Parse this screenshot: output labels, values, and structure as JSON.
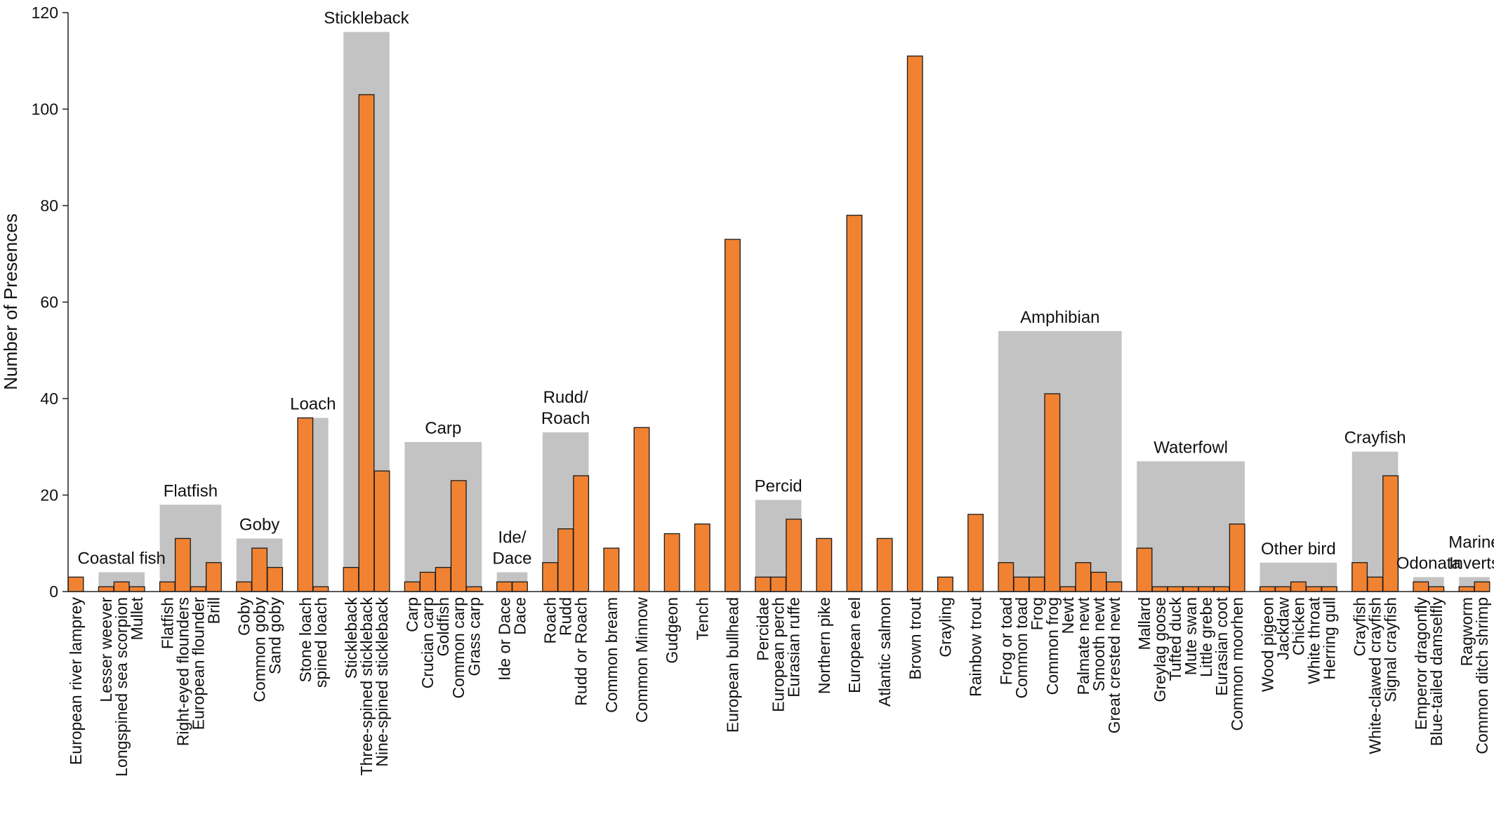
{
  "colors": {
    "bar": "#F08232",
    "bar_stroke": "#1a1a1a",
    "group_box": "#C3C3C3",
    "axis": "#222222"
  },
  "chart_data": {
    "type": "bar",
    "title": "",
    "xlabel": "",
    "ylabel": "Number of Presences",
    "ylim": [
      0,
      120
    ],
    "yticks": [
      0,
      20,
      40,
      60,
      80,
      100,
      120
    ],
    "grid": false,
    "legend": "none",
    "categories": [
      "European river lamprey",
      "Lesser weever",
      "Longspined sea scorpion",
      "Mullet",
      "Flatfish",
      "Right-eyed flounders",
      "European flounder",
      "Brill",
      "Goby",
      "Common goby",
      "Sand goby",
      "Stone loach",
      "spined loach",
      "Stickleback",
      "Three-spined stickleback",
      "Nine-spined stickleback",
      "Carp",
      "Crucian carp",
      "Goldfish",
      "Common carp",
      "Grass carp",
      "Ide or Dace",
      "Dace",
      "Roach",
      "Rudd",
      "Rudd or Roach",
      "Common bream",
      "Common Minnow",
      "Gudgeon",
      "Tench",
      "European bullhead",
      "Percidae",
      "European perch",
      "Eurasian ruffe",
      "Northern pike",
      "European eel",
      "Atlantic salmon",
      "Brown trout",
      "Grayling",
      "Rainbow trout",
      "Frog or toad",
      "Common toad",
      "Frog",
      "Common frog",
      "Newt",
      "Palmate newt",
      "Smooth newt",
      "Great crested newt",
      "Mallard",
      "Greylag goose",
      "Tufted duck",
      "Mute swan",
      "Little grebe",
      "Eurasian coot",
      "Common moorhen",
      "Wood pigeon",
      "Jackdaw",
      "Chicken",
      "White throat",
      "Herring gull",
      "Crayfish",
      "White-clawed crayfish",
      "Signal crayfish",
      "Emperor dragonfly",
      "Blue-tailed damselfly",
      "Ragworm",
      "Common ditch shrimp"
    ],
    "values": [
      3,
      1,
      2,
      1,
      2,
      11,
      1,
      6,
      2,
      9,
      5,
      36,
      1,
      5,
      103,
      25,
      2,
      4,
      5,
      23,
      1,
      2,
      2,
      6,
      13,
      24,
      9,
      34,
      12,
      14,
      73,
      3,
      3,
      15,
      11,
      78,
      11,
      111,
      3,
      16,
      6,
      3,
      3,
      41,
      1,
      6,
      4,
      2,
      9,
      1,
      1,
      1,
      1,
      1,
      14,
      1,
      1,
      2,
      1,
      1,
      6,
      3,
      24,
      2,
      1,
      1,
      2
    ],
    "groups": [
      {
        "name": "Coastal fish",
        "total": 4,
        "members": [
          1,
          3
        ]
      },
      {
        "name": "Flatfish",
        "total": 18,
        "members": [
          4,
          7
        ]
      },
      {
        "name": "Goby",
        "total": 11,
        "members": [
          8,
          10
        ]
      },
      {
        "name": "Loach",
        "total": 36,
        "members": [
          11,
          12
        ]
      },
      {
        "name": "Stickleback",
        "total": 116,
        "members": [
          13,
          15
        ]
      },
      {
        "name": "Carp",
        "total": 31,
        "members": [
          16,
          20
        ]
      },
      {
        "name": "Ide/ Dace",
        "total": 4,
        "members": [
          21,
          22
        ]
      },
      {
        "name": "Rudd/ Roach",
        "total": 33,
        "members": [
          23,
          25
        ]
      },
      {
        "name": "Percid",
        "total": 19,
        "members": [
          31,
          33
        ]
      },
      {
        "name": "Amphibian",
        "total": 54,
        "members": [
          40,
          47
        ]
      },
      {
        "name": "Waterfowl",
        "total": 27,
        "members": [
          48,
          54
        ]
      },
      {
        "name": "Other bird",
        "total": 6,
        "members": [
          55,
          59
        ]
      },
      {
        "name": "Crayfish",
        "total": 29,
        "members": [
          60,
          62
        ]
      },
      {
        "name": "Odonata",
        "total": 3,
        "members": [
          63,
          64
        ]
      },
      {
        "name": "Marine Inverts",
        "total": 3,
        "members": [
          65,
          66
        ]
      }
    ]
  }
}
